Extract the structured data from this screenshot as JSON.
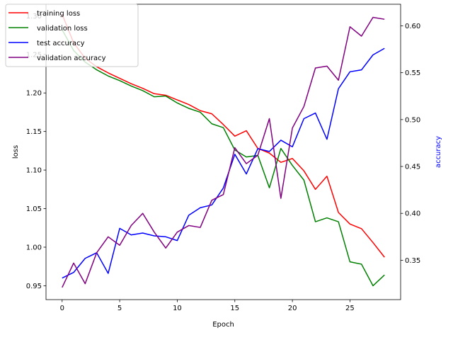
{
  "chart_data": {
    "type": "line",
    "xlabel": "Epoch",
    "ylabel_left": "loss",
    "ylabel_right": "accuracy",
    "ylabel_right_color": "#0000ff",
    "xlim": [
      -1.4,
      29.4
    ],
    "ylim_left": [
      0.932,
      1.315
    ],
    "ylim_right": [
      0.308,
      0.623
    ],
    "x_ticks": [
      0,
      5,
      10,
      15,
      20,
      25
    ],
    "y_ticks_left": [
      0.95,
      1.0,
      1.05,
      1.1,
      1.15,
      1.2,
      1.25,
      1.3
    ],
    "y_ticks_right": [
      0.35,
      0.4,
      0.45,
      0.5,
      0.55,
      0.6
    ],
    "x": [
      0,
      1,
      2,
      3,
      4,
      5,
      6,
      7,
      8,
      9,
      10,
      11,
      12,
      13,
      14,
      15,
      16,
      17,
      18,
      19,
      20,
      21,
      22,
      23,
      24,
      25,
      26,
      27,
      28
    ],
    "legend_position": "top-left",
    "grid": false,
    "series": [
      {
        "name": "training loss",
        "axis": "left",
        "color": "#ff0000",
        "values": [
          1.302,
          1.265,
          1.245,
          1.234,
          1.226,
          1.219,
          1.212,
          1.206,
          1.199,
          1.197,
          1.191,
          1.185,
          1.177,
          1.173,
          1.159,
          1.144,
          1.151,
          1.128,
          1.122,
          1.11,
          1.115,
          1.099,
          1.075,
          1.092,
          1.045,
          1.03,
          1.024,
          1.006,
          0.987
        ]
      },
      {
        "name": "validation loss",
        "axis": "left",
        "color": "#008000",
        "values": [
          1.282,
          1.255,
          1.24,
          1.23,
          1.222,
          1.216,
          1.209,
          1.203,
          1.195,
          1.196,
          1.187,
          1.18,
          1.175,
          1.16,
          1.155,
          1.126,
          1.117,
          1.119,
          1.077,
          1.128,
          1.106,
          1.087,
          1.033,
          1.038,
          1.033,
          0.981,
          0.978,
          0.95,
          0.964
        ]
      },
      {
        "name": "test accuracy",
        "axis": "right",
        "color": "#0000ff",
        "values": [
          0.331,
          0.337,
          0.352,
          0.358,
          0.336,
          0.384,
          0.377,
          0.379,
          0.376,
          0.375,
          0.371,
          0.398,
          0.406,
          0.409,
          0.427,
          0.463,
          0.442,
          0.469,
          0.466,
          0.478,
          0.471,
          0.501,
          0.507,
          0.479,
          0.533,
          0.551,
          0.553,
          0.569,
          0.576
        ]
      },
      {
        "name": "validation accuracy",
        "axis": "right",
        "color": "#800080",
        "values": [
          0.321,
          0.347,
          0.325,
          0.358,
          0.375,
          0.366,
          0.387,
          0.4,
          0.38,
          0.363,
          0.38,
          0.387,
          0.385,
          0.414,
          0.42,
          0.47,
          0.453,
          0.462,
          0.501,
          0.416,
          0.491,
          0.514,
          0.555,
          0.557,
          0.542,
          0.599,
          0.589,
          0.609,
          0.607
        ]
      }
    ]
  }
}
